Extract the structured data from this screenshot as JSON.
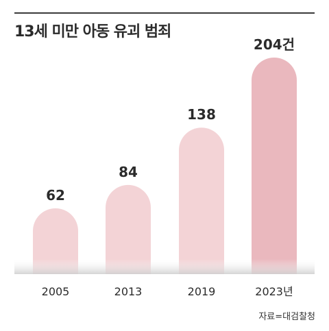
{
  "title": "13세 미만 아동 유괴 범죄",
  "source": "자료=대검찰청",
  "colors": {
    "bar_light": "#f3d3d6",
    "bar_dark": "#eab8be",
    "text": "#2b2b2b"
  },
  "chart_data": {
    "type": "bar",
    "categories": [
      "2005",
      "2013",
      "2019",
      "2023년"
    ],
    "values": [
      62,
      84,
      138,
      204
    ],
    "value_labels": [
      "62",
      "84",
      "138",
      "204건"
    ],
    "title": "13세 미만 아동 유괴 범죄",
    "xlabel": "",
    "ylabel": "",
    "ylim": [
      0,
      204
    ],
    "grid": false
  }
}
